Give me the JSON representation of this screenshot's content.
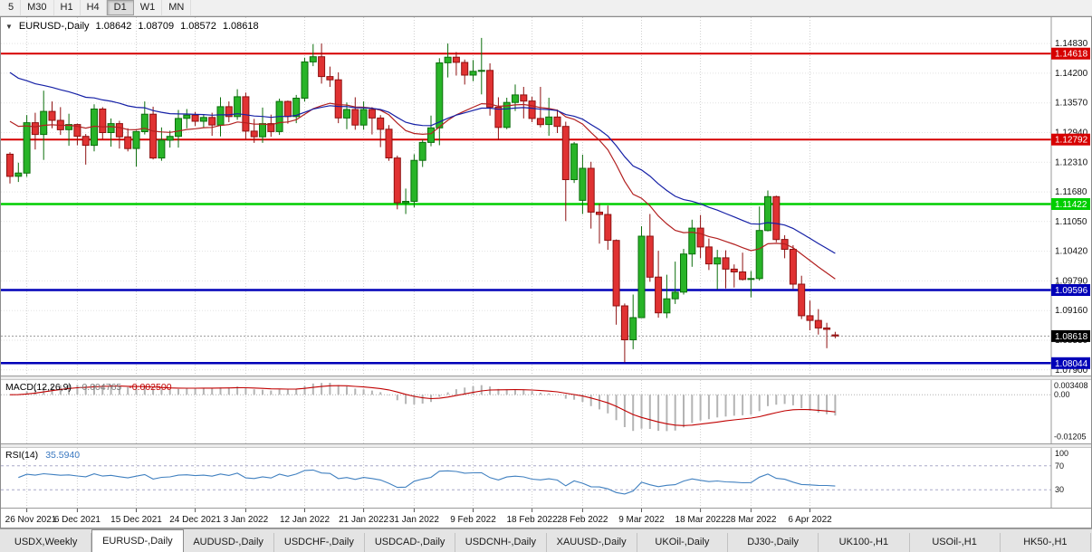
{
  "window": {
    "toolbar_periods": [
      "5",
      "M30",
      "H1",
      "H4",
      "D1",
      "W1",
      "MN"
    ],
    "toolbar_active": "D1"
  },
  "chart_header": {
    "symbol": "EURUSD-,Daily",
    "open": "1.08642",
    "high": "1.08709",
    "low": "1.08572",
    "close": "1.08618"
  },
  "macd_header": {
    "name": "MACD(12,26,9)",
    "main_value": "-0.004765",
    "signal_value": "-0.002500"
  },
  "rsi_header": {
    "name": "RSI(14)",
    "value": "35.5940"
  },
  "price_axis": {
    "labels": [
      "1.14830",
      "1.14200",
      "1.13570",
      "1.12940",
      "1.12310",
      "1.11680",
      "1.11050",
      "1.10420",
      "1.09790",
      "1.09160",
      "1.08530",
      "1.07900"
    ]
  },
  "macd_axis": {
    "labels": [
      {
        "text": "0.003408",
        "value": 0.003408
      },
      {
        "text": "0.00",
        "value": 0
      },
      {
        "text": "-0.01205",
        "value": -0.01205
      }
    ]
  },
  "rsi_axis": {
    "labels": [
      {
        "text": "100",
        "value": 100
      },
      {
        "text": "70",
        "value": 70
      },
      {
        "text": "30",
        "value": 30
      }
    ]
  },
  "tabs": [
    "USDX,Weekly",
    "EURUSD-,Daily",
    "AUDUSD-,Daily",
    "USDCHF-,Daily",
    "USDCAD-,Daily",
    "USDCNH-,Daily",
    "XAUUSD-,Daily",
    "UKOil-,Daily",
    "DJ30-,Daily",
    "UK100-,H1",
    "USOil-,H1",
    "HK50-,H1"
  ],
  "active_tab": "EURUSD-,Daily",
  "chart_data": {
    "type": "candlestick",
    "symbol": "EURUSD",
    "timeframe": "Daily",
    "price_range": {
      "min": 1.0778,
      "max": 1.1539
    },
    "x_labels": [
      "26 Nov 2021",
      "6 Dec 2021",
      "15 Dec 2021",
      "24 Dec 2021",
      "3 Jan 2022",
      "12 Jan 2022",
      "21 Jan 2022",
      "31 Jan 2022",
      "9 Feb 2022",
      "18 Feb 2022",
      "28 Feb 2022",
      "9 Mar 2022",
      "18 Mar 2022",
      "28 Mar 2022",
      "6 Apr 2022"
    ],
    "x_label_indices": [
      2,
      8,
      15,
      22,
      28,
      35,
      42,
      48,
      55,
      62,
      68,
      75,
      82,
      88,
      95
    ],
    "candles": [
      [
        1.1248,
        1.1252,
        1.1186,
        1.1201
      ],
      [
        1.1201,
        1.123,
        1.1189,
        1.1208
      ],
      [
        1.1208,
        1.1331,
        1.12,
        1.1315
      ],
      [
        1.1315,
        1.1336,
        1.1258,
        1.129
      ],
      [
        1.129,
        1.1383,
        1.1236,
        1.1339
      ],
      [
        1.1339,
        1.136,
        1.1303,
        1.132
      ],
      [
        1.132,
        1.1348,
        1.1289,
        1.13
      ],
      [
        1.13,
        1.1334,
        1.1266,
        1.1311
      ],
      [
        1.1311,
        1.1313,
        1.1267,
        1.1286
      ],
      [
        1.1286,
        1.1291,
        1.1226,
        1.1267
      ],
      [
        1.1267,
        1.1354,
        1.1254,
        1.1344
      ],
      [
        1.1344,
        1.1348,
        1.128,
        1.1294
      ],
      [
        1.1294,
        1.1324,
        1.1264,
        1.1313
      ],
      [
        1.1313,
        1.1319,
        1.126,
        1.1285
      ],
      [
        1.1285,
        1.1303,
        1.1254,
        1.126
      ],
      [
        1.126,
        1.1298,
        1.1222,
        1.1296
      ],
      [
        1.1296,
        1.136,
        1.129,
        1.1333
      ],
      [
        1.1333,
        1.1349,
        1.1237,
        1.124
      ],
      [
        1.124,
        1.1305,
        1.1234,
        1.1278
      ],
      [
        1.1278,
        1.1298,
        1.1262,
        1.1286
      ],
      [
        1.1286,
        1.1342,
        1.1262,
        1.1324
      ],
      [
        1.1324,
        1.1344,
        1.1303,
        1.1331
      ],
      [
        1.1331,
        1.1338,
        1.1308,
        1.1318
      ],
      [
        1.1318,
        1.1333,
        1.1304,
        1.1326
      ],
      [
        1.1326,
        1.1336,
        1.1287,
        1.131
      ],
      [
        1.131,
        1.1369,
        1.1286,
        1.1349
      ],
      [
        1.1349,
        1.136,
        1.1316,
        1.1328
      ],
      [
        1.1328,
        1.1386,
        1.1321,
        1.137
      ],
      [
        1.137,
        1.1379,
        1.1279,
        1.1297
      ],
      [
        1.1297,
        1.1323,
        1.1272,
        1.1285
      ],
      [
        1.1285,
        1.1347,
        1.1272,
        1.1313
      ],
      [
        1.1313,
        1.1332,
        1.1285,
        1.1296
      ],
      [
        1.1296,
        1.1366,
        1.1289,
        1.136
      ],
      [
        1.136,
        1.1362,
        1.1313,
        1.1328
      ],
      [
        1.1328,
        1.1374,
        1.1314,
        1.1367
      ],
      [
        1.1367,
        1.1453,
        1.136,
        1.1444
      ],
      [
        1.1444,
        1.1482,
        1.1435,
        1.1455
      ],
      [
        1.1455,
        1.1483,
        1.1398,
        1.1413
      ],
      [
        1.1413,
        1.1434,
        1.1391,
        1.1406
      ],
      [
        1.1406,
        1.1422,
        1.1314,
        1.1325
      ],
      [
        1.1325,
        1.1358,
        1.1301,
        1.1343
      ],
      [
        1.1343,
        1.1369,
        1.13,
        1.131
      ],
      [
        1.131,
        1.136,
        1.13,
        1.1343
      ],
      [
        1.1343,
        1.1348,
        1.129,
        1.1325
      ],
      [
        1.1325,
        1.1331,
        1.1263,
        1.1301
      ],
      [
        1.1301,
        1.131,
        1.1234,
        1.124
      ],
      [
        1.124,
        1.1245,
        1.1131,
        1.1145
      ],
      [
        1.1145,
        1.1175,
        1.1121,
        1.1148
      ],
      [
        1.1148,
        1.1248,
        1.1135,
        1.1235
      ],
      [
        1.1235,
        1.1279,
        1.1221,
        1.1273
      ],
      [
        1.1273,
        1.133,
        1.1265,
        1.1304
      ],
      [
        1.1304,
        1.1452,
        1.1267,
        1.1442
      ],
      [
        1.1442,
        1.1483,
        1.1411,
        1.1454
      ],
      [
        1.1454,
        1.1465,
        1.1415,
        1.1443
      ],
      [
        1.1443,
        1.1449,
        1.1396,
        1.1416
      ],
      [
        1.1416,
        1.1448,
        1.1403,
        1.1424
      ],
      [
        1.1424,
        1.1495,
        1.1375,
        1.1426
      ],
      [
        1.1426,
        1.1441,
        1.133,
        1.1348
      ],
      [
        1.1348,
        1.1369,
        1.1278,
        1.1305
      ],
      [
        1.1305,
        1.1368,
        1.1301,
        1.1358
      ],
      [
        1.1358,
        1.1396,
        1.134,
        1.1374
      ],
      [
        1.1374,
        1.1391,
        1.1324,
        1.1361
      ],
      [
        1.1361,
        1.137,
        1.1316,
        1.1324
      ],
      [
        1.1324,
        1.1391,
        1.1305,
        1.1311
      ],
      [
        1.1311,
        1.1368,
        1.1287,
        1.1327
      ],
      [
        1.1327,
        1.1343,
        1.1293,
        1.1307
      ],
      [
        1.1307,
        1.1317,
        1.1106,
        1.1194
      ],
      [
        1.1194,
        1.1274,
        1.1187,
        1.127
      ],
      [
        1.115,
        1.1247,
        1.1121,
        1.1218
      ],
      [
        1.1218,
        1.1232,
        1.109,
        1.1125
      ],
      [
        1.1125,
        1.1143,
        1.1058,
        1.112
      ],
      [
        1.112,
        1.1139,
        1.1045,
        1.1065
      ],
      [
        1.1065,
        1.1067,
        1.0886,
        1.0926
      ],
      [
        1.0926,
        1.0931,
        1.0806,
        1.0854
      ],
      [
        1.0854,
        1.095,
        1.0834,
        1.0901
      ],
      [
        1.0901,
        1.1095,
        1.09,
        1.1074
      ],
      [
        1.1074,
        1.1121,
        1.0977,
        1.0987
      ],
      [
        1.0987,
        1.1043,
        1.0901,
        1.0911
      ],
      [
        1.0911,
        1.0992,
        1.09,
        1.0941
      ],
      [
        1.0941,
        1.102,
        1.093,
        1.0955
      ],
      [
        1.0955,
        1.1047,
        1.095,
        1.1036
      ],
      [
        1.1036,
        1.1109,
        1.1009,
        1.1091
      ],
      [
        1.1091,
        1.1119,
        1.1027,
        1.1051
      ],
      [
        1.1051,
        1.1069,
        1.1002,
        1.1015
      ],
      [
        1.1015,
        1.1045,
        1.0961,
        1.1028
      ],
      [
        1.1028,
        1.1044,
        1.0963,
        1.1004
      ],
      [
        1.1004,
        1.1014,
        1.0965,
        1.0998
      ],
      [
        1.0998,
        1.1039,
        1.098,
        1.0982
      ],
      [
        1.0982,
        1.1,
        1.0944,
        1.0984
      ],
      [
        1.0984,
        1.1137,
        1.098,
        1.1086
      ],
      [
        1.1086,
        1.1171,
        1.1084,
        1.1158
      ],
      [
        1.1158,
        1.116,
        1.1061,
        1.1067
      ],
      [
        1.1067,
        1.1076,
        1.1027,
        1.1046
      ],
      [
        1.1046,
        1.1055,
        1.0962,
        1.0972
      ],
      [
        1.0972,
        1.099,
        1.0898,
        1.0905
      ],
      [
        1.0905,
        1.0937,
        1.0874,
        1.0895
      ],
      [
        1.0895,
        1.0919,
        1.0865,
        1.0879
      ],
      [
        1.0879,
        1.089,
        1.0836,
        1.0876
      ],
      [
        1.08642,
        1.08709,
        1.08572,
        1.08618
      ]
    ],
    "hlines": [
      {
        "name": "resistance-line-114618",
        "price": 1.14618,
        "color": "#d60000",
        "width": 2,
        "label": "1.14618",
        "label_bg": "#d60000"
      },
      {
        "name": "resistance-line-112792",
        "price": 1.12792,
        "color": "#d60000",
        "width": 2,
        "label": "1.12792",
        "label_bg": "#d60000"
      },
      {
        "name": "support-line-111422",
        "price": 1.11422,
        "color": "#00ce00",
        "width": 2.5,
        "label": "1.11422",
        "label_bg": "#00ce00"
      },
      {
        "name": "support-line-109596",
        "price": 1.09596,
        "color": "#0000b8",
        "width": 2.5,
        "label": "1.09596",
        "label_bg": "#0000b8"
      },
      {
        "name": "support-line-108044",
        "price": 1.08044,
        "color": "#0000b8",
        "width": 2.5,
        "label": "1.08044",
        "label_bg": "#0000b8"
      }
    ],
    "current_price": {
      "value": 1.08618,
      "label": "1.08618",
      "label_bg": "#000000"
    },
    "moving_averages": [
      {
        "name": "ma-red-line",
        "period": 20,
        "seed": 1.133,
        "color": "#b22020"
      },
      {
        "name": "ma-blue-line",
        "period": 34,
        "seed": 1.1435,
        "color": "#1520a6"
      }
    ],
    "macd": {
      "fast": 12,
      "slow": 26,
      "signal": 9,
      "range": {
        "min": -0.014,
        "max": 0.0042
      },
      "histogram_color": "#b4b4b4",
      "signal_color": "#c00000"
    },
    "rsi": {
      "period": 14,
      "range": {
        "min": 0,
        "max": 100
      },
      "levels": [
        70,
        30
      ],
      "line_color": "#4080c0",
      "level_color": "#a8a8c8"
    },
    "colors": {
      "bull": "#28b428",
      "bull_border": "#0c6e0c",
      "bear": "#e03232",
      "bear_border": "#8e1010",
      "grid": "#cfcfcf",
      "scale_border": "#9a9a9a",
      "accent_red": "#d60000",
      "accent_green": "#00ce00",
      "accent_blue": "#0000b8"
    }
  }
}
